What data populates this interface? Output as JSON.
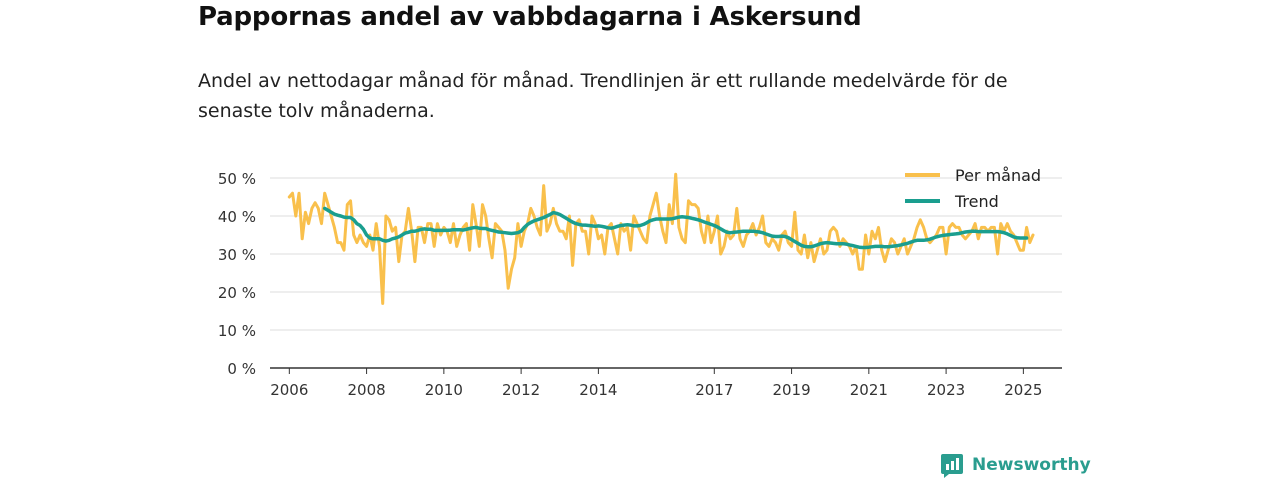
{
  "title": "Pappornas andel av vabbdagarna i Askersund",
  "subtitle": "Andel av nettodagar månad för månad. Trendlinjen är ett rullande medelvärde för de senaste tolv månaderna.",
  "brand": {
    "name": "Newsworthy"
  },
  "colors": {
    "per_manad": "#f9c04c",
    "trend": "#1a9e8f",
    "grid": "#dddddd",
    "axis": "#333333"
  },
  "chart_data": {
    "type": "line",
    "x_start": 2006.0,
    "x_step_months": 1,
    "xlim": [
      2005.5,
      2026.0
    ],
    "ylim": [
      0,
      50
    ],
    "y_ticks": [
      0,
      10,
      20,
      30,
      40,
      50
    ],
    "y_tick_labels": [
      "0 %",
      "10 %",
      "20 %",
      "30 %",
      "40 %",
      "50 %"
    ],
    "x_ticks": [
      2006,
      2008,
      2010,
      2012,
      2014,
      2017,
      2019,
      2021,
      2023,
      2025
    ],
    "x_tick_labels": [
      "2006",
      "2008",
      "2010",
      "2012",
      "2014",
      "2017",
      "2019",
      "2021",
      "2023",
      "2025"
    ],
    "legend": [
      "Per månad",
      "Trend"
    ],
    "legend_position": "top-right",
    "series": [
      {
        "name": "Per månad",
        "values": [
          45,
          46,
          40,
          46,
          34,
          41,
          38,
          42,
          43.5,
          42,
          38,
          46,
          43,
          40,
          37,
          33,
          33,
          31,
          43,
          44,
          35,
          33,
          35,
          33,
          32,
          35,
          31,
          38,
          32,
          17,
          40,
          39,
          36,
          37,
          28,
          35,
          36,
          42,
          36,
          28,
          37,
          37,
          33,
          38,
          38,
          32,
          38,
          35,
          37,
          36,
          33,
          38,
          32,
          35,
          37,
          38,
          31,
          43,
          38,
          32,
          43,
          40,
          34,
          29,
          38,
          37,
          36,
          31,
          21,
          26,
          29,
          38,
          32,
          36,
          38,
          42,
          40,
          37,
          35,
          48,
          36,
          38,
          42,
          38,
          36,
          36,
          34,
          40,
          27,
          38,
          39,
          36,
          36,
          30,
          40,
          38,
          34,
          35,
          30,
          37,
          38,
          34,
          30,
          38,
          36,
          37,
          31,
          40,
          38,
          36,
          34,
          33,
          40,
          43,
          46,
          40,
          36,
          33,
          43,
          38,
          51,
          37,
          34,
          33,
          44,
          43,
          43,
          42,
          36,
          33,
          40,
          33,
          36,
          40,
          30,
          32,
          36,
          34,
          35,
          42,
          34,
          32,
          35,
          36,
          38,
          35,
          37,
          40,
          33,
          32,
          34,
          33,
          31,
          35,
          36,
          33,
          32,
          41,
          31,
          30,
          35,
          29,
          33,
          28,
          31,
          34,
          30,
          31,
          36,
          37,
          36,
          32,
          34,
          33,
          32,
          30,
          32,
          26,
          26,
          35,
          30,
          36,
          34,
          37,
          31,
          28,
          31,
          34,
          33,
          30,
          32,
          34,
          30,
          32,
          34,
          37,
          39,
          37,
          34,
          33,
          34,
          35,
          37,
          37,
          30,
          37,
          38,
          37,
          37,
          35,
          34,
          35,
          36,
          38,
          34,
          37,
          37,
          36,
          37,
          37,
          30,
          38,
          36,
          38,
          36,
          35,
          33,
          31,
          31,
          37,
          33,
          35
        ]
      },
      {
        "name": "Trend",
        "values": [
          null,
          null,
          null,
          null,
          null,
          null,
          null,
          null,
          null,
          null,
          null,
          42,
          41.5,
          41,
          40.5,
          40.2,
          40,
          39.7,
          39.6,
          39.6,
          39,
          38,
          37.5,
          36.5,
          35,
          34.2,
          34,
          34,
          34,
          33.6,
          33.4,
          33.6,
          34,
          34.2,
          34.5,
          35,
          35.5,
          35.7,
          36,
          36,
          36.2,
          36.5,
          36.6,
          36.5,
          36.5,
          36.2,
          36.2,
          36.2,
          36.2,
          36.2,
          36.3,
          36.4,
          36.4,
          36.4,
          36.3,
          36.5,
          36.7,
          36.9,
          37,
          36.8,
          36.7,
          36.7,
          36.4,
          36.2,
          36.0,
          35.8,
          35.7,
          35.6,
          35.5,
          35.4,
          35.5,
          35.6,
          36.0,
          37.0,
          37.8,
          38.3,
          38.7,
          39.0,
          39.3,
          39.6,
          40.0,
          40.4,
          40.9,
          40.7,
          40.4,
          39.9,
          39.4,
          38.9,
          38.4,
          38.0,
          37.8,
          37.6,
          37.6,
          37.5,
          37.4,
          37.3,
          37.4,
          37.3,
          37.1,
          36.9,
          36.8,
          37.0,
          37.3,
          37.5,
          37.6,
          37.7,
          37.6,
          37.4,
          37.4,
          37.5,
          37.8,
          38.2,
          38.7,
          39.0,
          39.2,
          39.2,
          39.2,
          39.2,
          39.2,
          39.3,
          39.5,
          39.7,
          39.8,
          39.7,
          39.6,
          39.4,
          39.2,
          39.0,
          38.7,
          38.4,
          38.1,
          37.8,
          37.5,
          37.1,
          36.6,
          36.1,
          35.7,
          35.6,
          35.7,
          35.8,
          35.9,
          36.0,
          36.0,
          36.0,
          36.0,
          35.9,
          35.8,
          35.6,
          35.3,
          35.0,
          34.7,
          34.6,
          34.6,
          34.7,
          34.6,
          34.3,
          33.8,
          33.3,
          32.8,
          32.3,
          32.0,
          31.9,
          31.9,
          32.1,
          32.4,
          32.7,
          32.9,
          33.0,
          32.9,
          32.8,
          32.7,
          32.7,
          32.7,
          32.6,
          32.4,
          32.2,
          32.0,
          31.8,
          31.7,
          31.7,
          31.8,
          31.9,
          32.0,
          32.0,
          32.0,
          31.9,
          31.9,
          32.0,
          32.1,
          32.2,
          32.4,
          32.6,
          32.8,
          33.1,
          33.4,
          33.6,
          33.6,
          33.6,
          33.7,
          33.9,
          34.2,
          34.5,
          34.7,
          34.9,
          35.0,
          35.1,
          35.2,
          35.3,
          35.4,
          35.6,
          35.8,
          35.9,
          36.0,
          36.0,
          35.9,
          35.9,
          35.9,
          35.9,
          35.9,
          35.9,
          35.9,
          35.8,
          35.6,
          35.3,
          34.9,
          34.5,
          34.3,
          34.2,
          34.2,
          34.2
        ]
      }
    ]
  }
}
